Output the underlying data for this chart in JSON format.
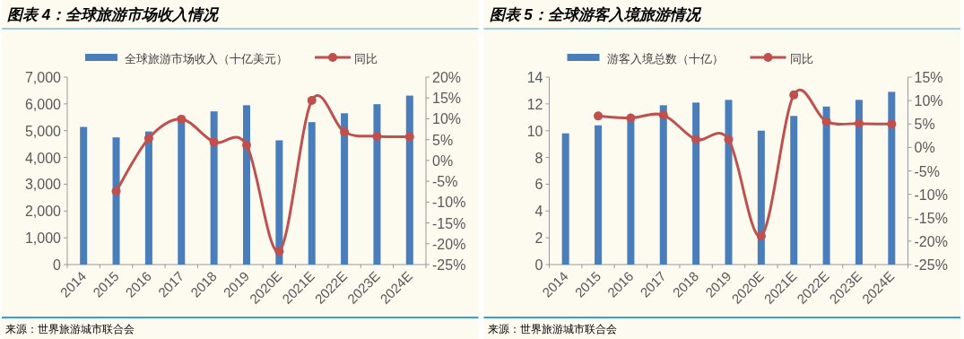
{
  "chart_data": [
    {
      "type": "bar",
      "title": "图表 4：全球旅游市场收入情况",
      "categories": [
        "2014",
        "2015",
        "2016",
        "2017",
        "2018",
        "2019",
        "2020E",
        "2021E",
        "2022E",
        "2023E",
        "2024E"
      ],
      "series": [
        {
          "name": "全球旅游市场收入（十亿美元）",
          "color": "#4a7ebb",
          "values": [
            5140,
            4750,
            4970,
            5380,
            5720,
            5950,
            4640,
            5320,
            5650,
            5990,
            6310
          ]
        },
        {
          "name": "同比",
          "type": "line",
          "axis": "y2",
          "color": "#c0504d",
          "values": [
            null,
            -7.4,
            5.3,
            9.9,
            4.4,
            3.7,
            -21.8,
            14.4,
            6.8,
            5.8,
            5.7
          ]
        }
      ],
      "ylim": [
        0,
        7000
      ],
      "yticks": [
        0,
        {
          "value": 1000,
          "label": "1,000"
        },
        {
          "value": 2000,
          "label": "2,000"
        },
        {
          "value": 3000,
          "label": "3,000"
        },
        {
          "value": 4000,
          "label": "4,000"
        },
        {
          "value": 5000,
          "label": "5,000"
        },
        {
          "value": 6000,
          "label": "6,000"
        },
        {
          "value": 7000,
          "label": "7,000"
        }
      ],
      "y2lim": [
        -25,
        20
      ],
      "y2ticks": [
        {
          "value": -25,
          "label": "-25%"
        },
        {
          "value": -20,
          "label": "-20%"
        },
        {
          "value": -15,
          "label": "-15%"
        },
        {
          "value": -10,
          "label": "-10%"
        },
        {
          "value": -5,
          "label": "-5%"
        },
        {
          "value": 0,
          "label": "0%"
        },
        {
          "value": 5,
          "label": "5%"
        },
        {
          "value": 10,
          "label": "10%"
        },
        {
          "value": 15,
          "label": "15%"
        },
        {
          "value": 20,
          "label": "20%"
        }
      ],
      "legend": "top",
      "marker": "circle",
      "annotations": [
        "来源：世界旅游城市联合会"
      ]
    },
    {
      "type": "bar",
      "title": "图表 5：全球游客入境旅游情况",
      "categories": [
        "2014",
        "2015",
        "2016",
        "2017",
        "2018",
        "2019",
        "2020E",
        "2021E",
        "2022E",
        "2023E",
        "2024E"
      ],
      "series": [
        {
          "name": "游客入境总数（十亿）",
          "color": "#4a7ebb",
          "values": [
            9.8,
            10.4,
            10.9,
            11.9,
            12.1,
            12.3,
            10.0,
            11.1,
            11.8,
            12.3,
            12.9
          ]
        },
        {
          "name": "同比",
          "type": "line",
          "axis": "y2",
          "color": "#c0504d",
          "values": [
            null,
            6.7,
            6.3,
            6.9,
            1.7,
            1.7,
            -18.9,
            11.2,
            5.5,
            5.1,
            5.0
          ]
        }
      ],
      "ylim": [
        0,
        14
      ],
      "yticks": [
        0,
        2,
        4,
        6,
        8,
        10,
        12,
        14
      ],
      "y2lim": [
        -25,
        15
      ],
      "y2ticks": [
        {
          "value": -25,
          "label": "-25%"
        },
        {
          "value": -20,
          "label": "-20%"
        },
        {
          "value": -15,
          "label": "-15%"
        },
        {
          "value": -10,
          "label": "-10%"
        },
        {
          "value": -5,
          "label": "-5%"
        },
        {
          "value": 0,
          "label": "0%"
        },
        {
          "value": 5,
          "label": "5%"
        },
        {
          "value": 10,
          "label": "10%"
        },
        {
          "value": 15,
          "label": "15%"
        }
      ],
      "legend": "top",
      "marker": "circle",
      "annotations": [
        "来源：世界旅游城市联合会"
      ]
    }
  ]
}
